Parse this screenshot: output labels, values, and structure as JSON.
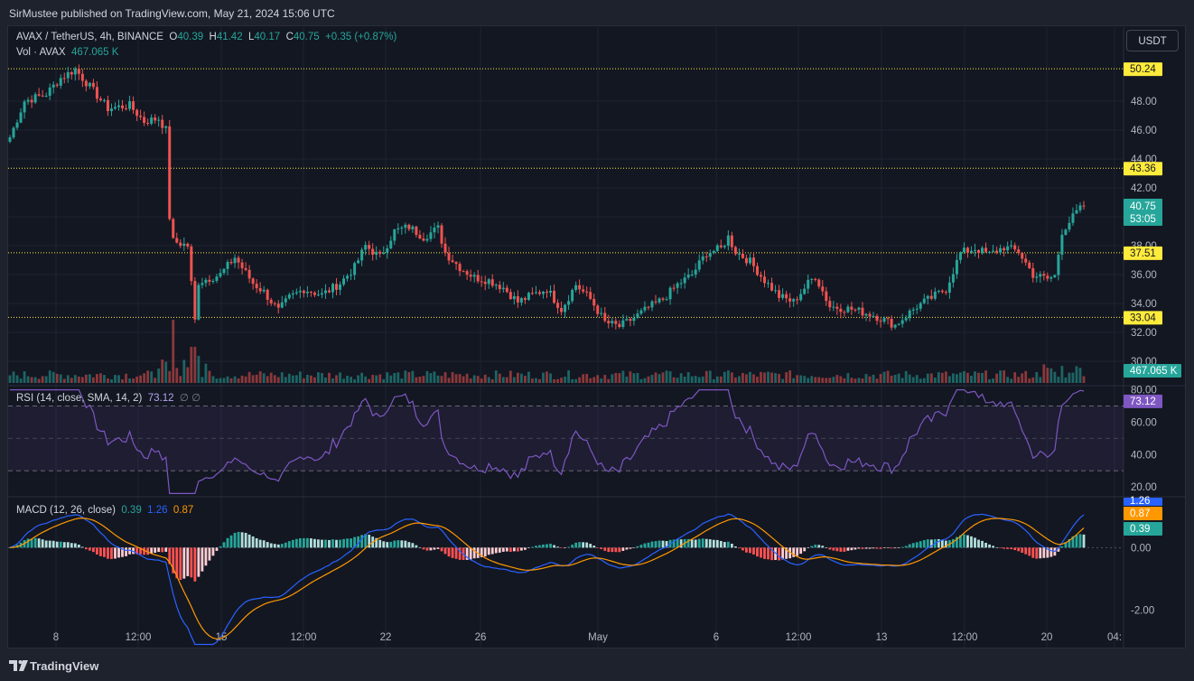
{
  "header": {
    "published": "SirMustee published on TradingView.com, May 21, 2024 15:06 UTC"
  },
  "currency_button": "USDT",
  "legend": {
    "symbol": "AVAX / TetherUS, 4h, BINANCE",
    "o_label": "O",
    "o_value": "40.39",
    "h_label": "H",
    "h_value": "41.42",
    "l_label": "L",
    "l_value": "40.17",
    "c_label": "C",
    "c_value": "40.75",
    "change": "+0.35 (+0.87%)",
    "vol_label": "Vol · AVAX",
    "vol_value": "467.065 K"
  },
  "rsi_legend": {
    "label": "RSI (14, close, SMA, 14, 2)",
    "value": "73.12",
    "extra": "∅  ∅"
  },
  "macd_legend": {
    "label": "MACD (12, 26, close)",
    "hist": "0.39",
    "macd": "1.26",
    "signal": "0.87"
  },
  "footer": {
    "brand": "TradingView"
  },
  "colors": {
    "up": "#26a69a",
    "down": "#ef5350",
    "rsi": "#7e57c2",
    "macd": "#2962ff",
    "signal": "#ff9800",
    "level": "#ffeb3b"
  },
  "chart_data": [
    {
      "type": "candlestick",
      "title": "AVAX / TetherUS, 4h, BINANCE",
      "ylim": [
        28.5,
        51.5
      ],
      "y_ticks": [
        "30.00",
        "32.00",
        "34.00",
        "36.00",
        "38.00",
        "40.00",
        "42.00",
        "44.00",
        "46.00",
        "48.00"
      ],
      "x_ticks": [
        "8",
        "12:00",
        "15",
        "12:00",
        "22",
        "26",
        "May",
        "6",
        "12:00",
        "13",
        "12:00",
        "20",
        "04:"
      ],
      "horizontal_levels": [
        "50.24",
        "43.36",
        "37.51",
        "33.04"
      ],
      "last_price_label": "40.75",
      "countdown_label": "53:05",
      "path_keypoints": [
        [
          0,
          45.5
        ],
        [
          4,
          48.0
        ],
        [
          10,
          48.5
        ],
        [
          14,
          49.6
        ],
        [
          18,
          50.2
        ],
        [
          22,
          49.0
        ],
        [
          27,
          47.5
        ],
        [
          33,
          47.7
        ],
        [
          37,
          46.6
        ],
        [
          41,
          46.8
        ],
        [
          43,
          46.0
        ],
        [
          44,
          40.0
        ],
        [
          45,
          38.3
        ],
        [
          49,
          38.0
        ],
        [
          51,
          32.8
        ],
        [
          52,
          35.5
        ],
        [
          58,
          36.0
        ],
        [
          62,
          37.2
        ],
        [
          67,
          35.4
        ],
        [
          70,
          34.8
        ],
        [
          74,
          33.5
        ],
        [
          77,
          34.4
        ],
        [
          81,
          35.0
        ],
        [
          86,
          34.6
        ],
        [
          91,
          35.4
        ],
        [
          95,
          36.5
        ],
        [
          98,
          38.0
        ],
        [
          102,
          37.2
        ],
        [
          106,
          39.0
        ],
        [
          110,
          39.3
        ],
        [
          114,
          38.6
        ],
        [
          118,
          39.2
        ],
        [
          120,
          37.5
        ],
        [
          124,
          36.5
        ],
        [
          128,
          35.8
        ],
        [
          132,
          35.6
        ],
        [
          136,
          35.1
        ],
        [
          140,
          34.1
        ],
        [
          144,
          34.6
        ],
        [
          148,
          35.0
        ],
        [
          152,
          33.6
        ],
        [
          156,
          35.3
        ],
        [
          160,
          34.3
        ],
        [
          164,
          32.7
        ],
        [
          168,
          32.4
        ],
        [
          172,
          33.0
        ],
        [
          176,
          33.7
        ],
        [
          180,
          34.3
        ],
        [
          184,
          35.3
        ],
        [
          188,
          36.0
        ],
        [
          192,
          37.5
        ],
        [
          196,
          37.8
        ],
        [
          198,
          38.6
        ],
        [
          200,
          37.6
        ],
        [
          204,
          36.9
        ],
        [
          208,
          35.6
        ],
        [
          212,
          34.5
        ],
        [
          216,
          34.1
        ],
        [
          220,
          35.4
        ],
        [
          222,
          35.9
        ],
        [
          226,
          33.8
        ],
        [
          232,
          33.6
        ],
        [
          238,
          33.2
        ],
        [
          244,
          32.5
        ],
        [
          250,
          33.8
        ],
        [
          254,
          34.4
        ],
        [
          258,
          35.0
        ],
        [
          262,
          37.5
        ],
        [
          266,
          37.8
        ],
        [
          270,
          37.4
        ],
        [
          274,
          37.9
        ],
        [
          278,
          37.6
        ],
        [
          282,
          36.0
        ],
        [
          286,
          35.7
        ],
        [
          288,
          35.9
        ],
        [
          290,
          39.0
        ],
        [
          294,
          40.3
        ],
        [
          296,
          40.75
        ]
      ],
      "candles_count": 297,
      "volume_last": "467.065 K"
    },
    {
      "type": "line",
      "title": "RSI (14, close, SMA, 14, 2)",
      "ylim": [
        14,
        82
      ],
      "y_ticks": [
        "20.00",
        "40.00",
        "60.00",
        "80.00"
      ],
      "bands": [
        30,
        50,
        70
      ],
      "last_value": "73.12"
    },
    {
      "type": "histogram+line",
      "title": "MACD (12, 26, close)",
      "ylim": [
        -3.2,
        1.6
      ],
      "y_ticks": [
        "-2.00",
        "0.00"
      ],
      "labels": {
        "macd": "1.26",
        "signal": "0.87",
        "hist": "0.39"
      }
    }
  ]
}
